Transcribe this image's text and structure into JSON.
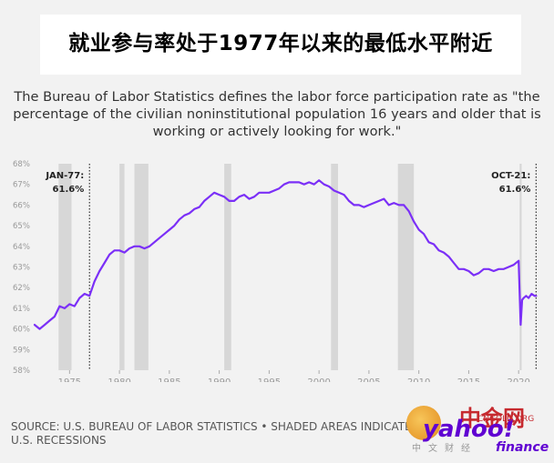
{
  "title": "就业参与率处于1977年以来的最低水平附近",
  "subtitle": "The Bureau of Labor Statistics defines the labor force participation rate as \"the percentage of the civilian noninstitutional population 16 years and older that is working or actively looking for work.\"",
  "source": "SOURCE: U.S. BUREAU OF LABOR STATISTICS • SHADED AREAS INDICATE U.S. RECESSIONS",
  "watermark": {
    "cn_brand": "中金网",
    "yahoo": "yahoo!",
    "cn_web": "CNGOLD.ORG",
    "cn_sub": "中文财经",
    "finance": "finance"
  },
  "colors": {
    "line": "#7b2ff7",
    "recession": "#d7d7d7",
    "background": "#f2f2f2",
    "axis_text": "#999999"
  },
  "chart_data": {
    "type": "line",
    "title": "",
    "xlabel": "",
    "ylabel": "",
    "xlim": [
      1971.5,
      2021.9
    ],
    "ylim": [
      58,
      68
    ],
    "y_ticks": [
      "58%",
      "59%",
      "60%",
      "61%",
      "62%",
      "63%",
      "64%",
      "65%",
      "66%",
      "67%",
      "68%"
    ],
    "x_ticks": [
      "1975",
      "1980",
      "1985",
      "1990",
      "1995",
      "2000",
      "2005",
      "2010",
      "2015",
      "2020"
    ],
    "grid": false,
    "recessions": [
      [
        1973.9,
        1975.2
      ],
      [
        1980.0,
        1980.5
      ],
      [
        1981.5,
        1982.9
      ],
      [
        1990.5,
        1991.2
      ],
      [
        2001.2,
        2001.9
      ],
      [
        2007.9,
        2009.5
      ],
      [
        2020.1,
        2020.3
      ]
    ],
    "annotations": [
      {
        "label": "JAN-77:",
        "value": "61.6%",
        "x": 1977.0
      },
      {
        "label": "OCT-21:",
        "value": "61.6%",
        "x": 2021.75
      }
    ],
    "series": [
      {
        "x": [
          1971.5,
          1972,
          1972.5,
          1973,
          1973.5,
          1974,
          1974.5,
          1975,
          1975.5,
          1976,
          1976.5,
          1977,
          1977.5,
          1978,
          1978.5,
          1979,
          1979.5,
          1980,
          1980.5,
          1981,
          1981.5,
          1982,
          1982.5,
          1983,
          1983.5,
          1984,
          1984.5,
          1985,
          1985.5,
          1986,
          1986.5,
          1987,
          1987.5,
          1988,
          1988.5,
          1989,
          1989.5,
          1990,
          1990.5,
          1991,
          1991.5,
          1992,
          1992.5,
          1993,
          1993.5,
          1994,
          1994.5,
          1995,
          1995.5,
          1996,
          1996.5,
          1997,
          1997.5,
          1998,
          1998.5,
          1999,
          1999.5,
          2000,
          2000.5,
          2001,
          2001.5,
          2002,
          2002.5,
          2003,
          2003.5,
          2004,
          2004.5,
          2005,
          2005.5,
          2006,
          2006.5,
          2007,
          2007.5,
          2008,
          2008.5,
          2009,
          2009.5,
          2010,
          2010.5,
          2011,
          2011.5,
          2012,
          2012.5,
          2013,
          2013.5,
          2014,
          2014.5,
          2015,
          2015.5,
          2016,
          2016.5,
          2017,
          2017.5,
          2018,
          2018.5,
          2019,
          2019.5,
          2020,
          2020.2,
          2020.35,
          2020.5,
          2020.75,
          2021,
          2021.3,
          2021.6,
          2021.75
        ],
        "values": [
          60.2,
          60.0,
          60.2,
          60.4,
          60.6,
          61.1,
          61.0,
          61.2,
          61.1,
          61.5,
          61.7,
          61.6,
          62.3,
          62.8,
          63.2,
          63.6,
          63.8,
          63.8,
          63.7,
          63.9,
          64.0,
          64.0,
          63.9,
          64.0,
          64.2,
          64.4,
          64.6,
          64.8,
          65.0,
          65.3,
          65.5,
          65.6,
          65.8,
          65.9,
          66.2,
          66.4,
          66.6,
          66.5,
          66.4,
          66.2,
          66.2,
          66.4,
          66.5,
          66.3,
          66.4,
          66.6,
          66.6,
          66.6,
          66.7,
          66.8,
          67.0,
          67.1,
          67.1,
          67.1,
          67.0,
          67.1,
          67.0,
          67.2,
          67.0,
          66.9,
          66.7,
          66.6,
          66.5,
          66.2,
          66.0,
          66.0,
          65.9,
          66.0,
          66.1,
          66.2,
          66.3,
          66.0,
          66.1,
          66.0,
          66.0,
          65.7,
          65.2,
          64.8,
          64.6,
          64.2,
          64.1,
          63.8,
          63.7,
          63.5,
          63.2,
          62.9,
          62.9,
          62.8,
          62.6,
          62.7,
          62.9,
          62.9,
          62.8,
          62.9,
          62.9,
          63.0,
          63.1,
          63.3,
          60.2,
          61.4,
          61.5,
          61.6,
          61.5,
          61.7,
          61.6,
          61.6
        ]
      }
    ]
  }
}
